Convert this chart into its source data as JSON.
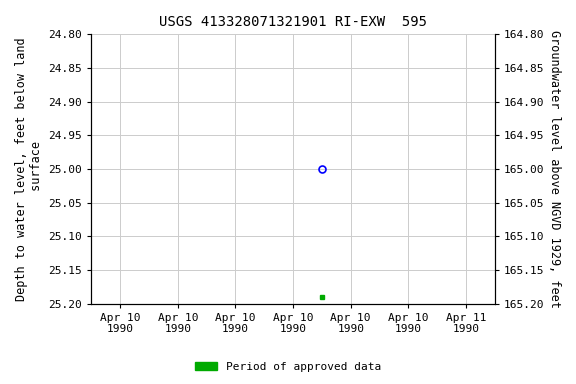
{
  "title": "USGS 413328071321901 RI-EXW  595",
  "ylabel_left": "Depth to water level, feet below land\n surface",
  "ylabel_right": "Groundwater level above NGVD 1929, feet",
  "ylim_left": [
    24.8,
    25.2
  ],
  "ylim_right": [
    165.2,
    164.8
  ],
  "yticks_left": [
    24.8,
    24.85,
    24.9,
    24.95,
    25.0,
    25.05,
    25.1,
    25.15,
    25.2
  ],
  "yticks_right": [
    165.2,
    165.15,
    165.1,
    165.05,
    165.0,
    164.95,
    164.9,
    164.85,
    164.8
  ],
  "yticks_right_labels": [
    "165.20",
    "165.15",
    "165.10",
    "165.05",
    "165.00",
    "164.95",
    "164.90",
    "164.85",
    "164.80"
  ],
  "point_blue_x": 3.5,
  "point_blue_y": 25.0,
  "point_green_x": 3.5,
  "point_green_y": 25.19,
  "xtick_labels": [
    "Apr 10\n1990",
    "Apr 10\n1990",
    "Apr 10\n1990",
    "Apr 10\n1990",
    "Apr 10\n1990",
    "Apr 10\n1990",
    "Apr 11\n1990"
  ],
  "xtick_positions": [
    0,
    1,
    2,
    3,
    4,
    5,
    6
  ],
  "xlim": [
    -0.5,
    6.5
  ],
  "legend_label": "Period of approved data",
  "legend_color": "#00aa00",
  "background_color": "#ffffff",
  "grid_color": "#cccccc",
  "title_fontsize": 10,
  "axis_label_fontsize": 8.5,
  "tick_fontsize": 8
}
